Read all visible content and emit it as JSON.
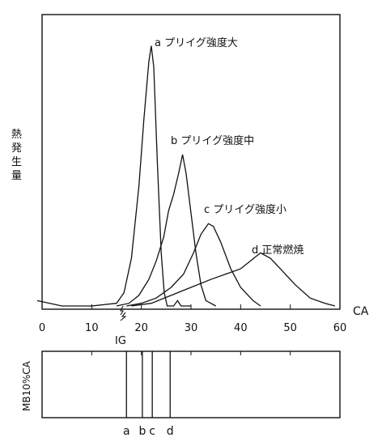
{
  "chart_data": [
    {
      "type": "line",
      "title": "",
      "ylabel": "熱発生量",
      "xlabel": "CA",
      "xlim": [
        0,
        60
      ],
      "x_ticks": [
        "0",
        "10",
        "20",
        "30",
        "40",
        "50",
        "60"
      ],
      "ignition_label": "IG",
      "ignition_x": 16,
      "grid": false,
      "series": [
        {
          "name": "a プリイグ強度大",
          "points": [
            [
              -1,
              0.02
            ],
            [
              4,
              0.0
            ],
            [
              10,
              0.0
            ],
            [
              15,
              0.01
            ],
            [
              16.5,
              0.05
            ],
            [
              18,
              0.18
            ],
            [
              19.5,
              0.45
            ],
            [
              20.5,
              0.7
            ],
            [
              21.5,
              0.92
            ],
            [
              22,
              0.98
            ],
            [
              22.5,
              0.9
            ],
            [
              23.2,
              0.55
            ],
            [
              24,
              0.2
            ],
            [
              24.6,
              0.05
            ],
            [
              25.2,
              0.0
            ],
            [
              26.5,
              0.0
            ],
            [
              27.3,
              0.02
            ],
            [
              28,
              0.0
            ],
            [
              30,
              0.0
            ]
          ]
        },
        {
          "name": "b プリイグ強度中",
          "points": [
            [
              15,
              0.0
            ],
            [
              17.5,
              0.01
            ],
            [
              19.5,
              0.04
            ],
            [
              21.5,
              0.1
            ],
            [
              23,
              0.17
            ],
            [
              24.5,
              0.26
            ],
            [
              25.5,
              0.36
            ],
            [
              26.5,
              0.42
            ],
            [
              27.5,
              0.5
            ],
            [
              28.3,
              0.57
            ],
            [
              29,
              0.5
            ],
            [
              30,
              0.35
            ],
            [
              31,
              0.2
            ],
            [
              32,
              0.08
            ],
            [
              33,
              0.02
            ],
            [
              35,
              0.0
            ]
          ]
        },
        {
          "name": "c プリイグ強度小",
          "points": [
            [
              17,
              0.0
            ],
            [
              20,
              0.01
            ],
            [
              23,
              0.03
            ],
            [
              26,
              0.07
            ],
            [
              28.5,
              0.12
            ],
            [
              30.5,
              0.2
            ],
            [
              32,
              0.27
            ],
            [
              33.5,
              0.31
            ],
            [
              34.5,
              0.3
            ],
            [
              36,
              0.24
            ],
            [
              38,
              0.14
            ],
            [
              40,
              0.07
            ],
            [
              42.5,
              0.02
            ],
            [
              44,
              0.0
            ]
          ]
        },
        {
          "name": "d 正常燃焼",
          "points": [
            [
              18,
              0.0
            ],
            [
              22,
              0.01
            ],
            [
              26,
              0.04
            ],
            [
              30,
              0.07
            ],
            [
              34,
              0.1
            ],
            [
              37,
              0.12
            ],
            [
              40,
              0.14
            ],
            [
              42,
              0.17
            ],
            [
              44,
              0.2
            ],
            [
              46,
              0.18
            ],
            [
              48,
              0.14
            ],
            [
              51,
              0.08
            ],
            [
              54,
              0.03
            ],
            [
              57,
              0.01
            ],
            [
              59,
              0.0
            ]
          ]
        }
      ]
    },
    {
      "type": "bar",
      "title": "",
      "ylabel": "MB10%CA",
      "xlabel": "",
      "xlim": [
        0,
        60
      ],
      "categories": [
        "a",
        "b",
        "c",
        "d"
      ],
      "values": [
        17,
        20.2,
        22.2,
        25.8
      ]
    }
  ]
}
